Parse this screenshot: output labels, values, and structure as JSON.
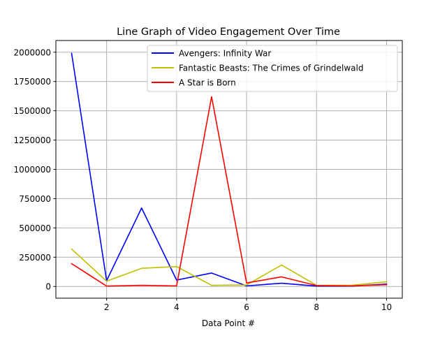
{
  "chart_data": {
    "type": "line",
    "title": "Line Graph of Video Engagement Over Time",
    "xlabel": "Data Point #",
    "ylabel": "",
    "xlim": [
      0.55,
      10.45
    ],
    "ylim": [
      -100000,
      2100000
    ],
    "xticks": [
      2,
      4,
      6,
      8,
      10
    ],
    "xtick_labels": [
      "2",
      "4",
      "6",
      "8",
      "10"
    ],
    "yticks": [
      0,
      250000,
      500000,
      750000,
      1000000,
      1250000,
      1500000,
      1750000,
      2000000
    ],
    "ytick_labels": [
      "0",
      "250000",
      "500000",
      "750000",
      "1000000",
      "1250000",
      "1500000",
      "1750000",
      "2000000"
    ],
    "grid": true,
    "legend_position": "top-right",
    "x": [
      1,
      2,
      3,
      4,
      5,
      6,
      7,
      8,
      9,
      10
    ],
    "series": [
      {
        "name": "Avengers: Infinity War",
        "color": "#0000ff",
        "values": [
          1990000,
          50000,
          670000,
          55000,
          115000,
          5000,
          28000,
          3000,
          3000,
          20000
        ]
      },
      {
        "name": "Fantastic Beasts: The Crimes of Grindelwald",
        "color": "#bfbf00",
        "values": [
          320000,
          45000,
          155000,
          170000,
          10000,
          13000,
          183000,
          10000,
          10000,
          40000
        ]
      },
      {
        "name": "A Star is Born",
        "color": "#ff0000",
        "values": [
          195000,
          3000,
          10000,
          5000,
          1620000,
          30000,
          82000,
          8000,
          5000,
          15000
        ]
      }
    ]
  }
}
